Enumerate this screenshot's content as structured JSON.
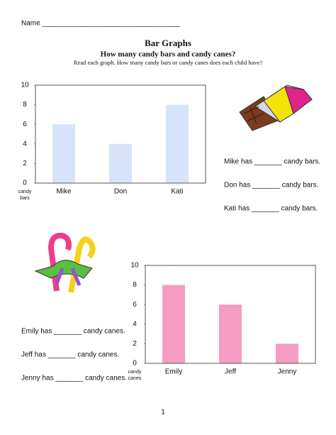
{
  "name_line": "Name ___________________________________",
  "title": "Bar Graphs",
  "subtitle": "How many candy bars and candy canes?",
  "instructions": "Read each graph.  How many candy bars or candy canes does each child have?",
  "chart_data": [
    {
      "type": "bar",
      "y_label": "candy bars",
      "categories": [
        "Mike",
        "Don",
        "Kati"
      ],
      "values": [
        6,
        4,
        8
      ],
      "color": "#d6e3fb",
      "ylim": [
        0,
        10
      ],
      "yticks": [
        0,
        2,
        4,
        6,
        8,
        10
      ]
    },
    {
      "type": "bar",
      "y_label": "candy canes",
      "categories": [
        "Emily",
        "Jeff",
        "Jenny"
      ],
      "values": [
        8,
        6,
        2
      ],
      "color": "#f59cc3",
      "ylim": [
        0,
        10
      ],
      "yticks": [
        0,
        2,
        4,
        6,
        8,
        10
      ]
    }
  ],
  "questions_bars": [
    "Mike has _______ candy bars.",
    "Don has _______ candy bars.",
    "Kati has _______ candy bars."
  ],
  "questions_canes": [
    "Emily has _______ candy canes.",
    "Jeff has _______ candy canes.",
    "Jenny has _______ candy canes."
  ],
  "page_number": "1"
}
